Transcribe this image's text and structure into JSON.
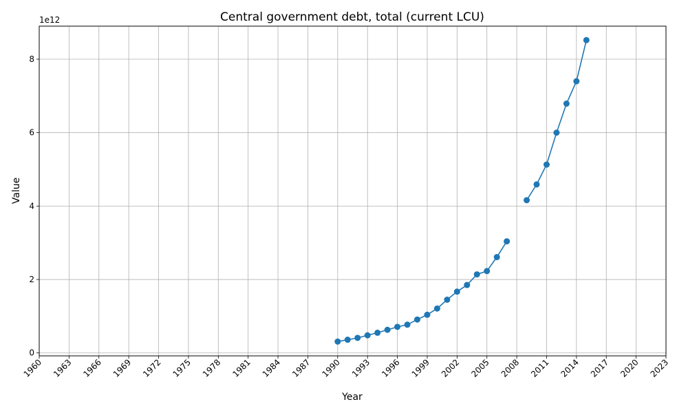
{
  "chart_data": {
    "type": "line",
    "title": "Central government debt, total (current LCU)",
    "xlabel": "Year",
    "ylabel": "Value",
    "y_offset_text": "1e12",
    "y_scale": 1000000000000.0,
    "xlim": [
      1960,
      2023
    ],
    "ylim": [
      -0.08,
      8.9
    ],
    "x_ticks": [
      1960,
      1963,
      1966,
      1969,
      1972,
      1975,
      1978,
      1981,
      1984,
      1987,
      1990,
      1993,
      1996,
      1999,
      2002,
      2005,
      2008,
      2011,
      2014,
      2017,
      2020,
      2023
    ],
    "y_ticks": [
      0,
      2,
      4,
      6,
      8
    ],
    "grid": true,
    "color": "#1f77b4",
    "series": [
      {
        "x": [
          1990,
          1991,
          1992,
          1993,
          1994,
          1995,
          1996,
          1997,
          1998,
          1999,
          2000,
          2001,
          2002,
          2003,
          2004,
          2005,
          2006,
          2007,
          2008,
          2009,
          2010,
          2011,
          2012,
          2013,
          2014,
          2015
        ],
        "values": [
          0.31,
          0.36,
          0.41,
          0.48,
          0.55,
          0.63,
          0.71,
          0.77,
          0.91,
          1.04,
          1.21,
          1.45,
          1.67,
          1.85,
          2.14,
          2.23,
          2.61,
          3.04,
          null,
          4.16,
          4.59,
          5.13,
          6.0,
          6.79,
          7.4,
          8.52
        ]
      }
    ]
  }
}
